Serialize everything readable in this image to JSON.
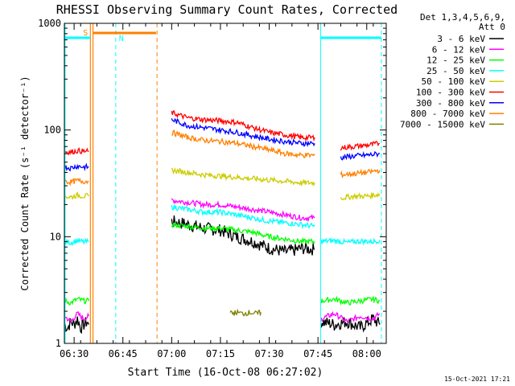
{
  "chart_data": {
    "type": "line",
    "title": "RHESSI Observing Summary Count Rates, Corrected",
    "xlabel": "Start Time (16-Oct-08 06:27:02)",
    "ylabel": "Corrected Count Rate (s⁻¹ detector⁻¹)",
    "ylim": [
      1,
      1000
    ],
    "yscale": "log",
    "xlim_minutes": [
      0,
      99
    ],
    "x_ticks": [
      {
        "label": "06:30",
        "minute": 3
      },
      {
        "label": "06:45",
        "minute": 18
      },
      {
        "label": "07:00",
        "minute": 33
      },
      {
        "label": "07:15",
        "minute": 48
      },
      {
        "label": "07:30",
        "minute": 63
      },
      {
        "label": "07:45",
        "minute": 78
      },
      {
        "label": "08:00",
        "minute": 93
      }
    ],
    "y_ticks": [
      {
        "label": "1",
        "value": 1
      },
      {
        "label": "10",
        "value": 10
      },
      {
        "label": "100",
        "value": 100
      },
      {
        "label": "1000",
        "value": 1000
      }
    ],
    "legend_header": [
      "Det 1,3,4,5,6,9,",
      "Att 0"
    ],
    "legend_position": "right",
    "date_stamp": "15-Oct-2021 17:21",
    "annotations": [
      {
        "label": "S",
        "color": "#ff8000"
      },
      {
        "label": "N",
        "color": "#00ffff"
      }
    ],
    "series": [
      {
        "name": "3 - 6 keV",
        "color": "#000000",
        "segments": [
          {
            "x": [
              0,
              1,
              2,
              3,
              4,
              5,
              6,
              7,
              7.5
            ],
            "y": [
              1.5,
              1.4,
              1.6,
              1.5,
              1.7,
              1.4,
              1.5,
              1.6,
              1.5
            ]
          },
          {
            "x": [
              33,
              38,
              43,
              48,
              53,
              58,
              63,
              68,
              71,
              73,
              77
            ],
            "y": [
              14,
              13,
              12,
              11.5,
              10,
              9,
              7.8,
              7.2,
              7.5,
              7.8,
              7.6
            ]
          },
          {
            "x": [
              79,
              83,
              87,
              91,
              95,
              97
            ],
            "y": [
              1.6,
              1.5,
              1.6,
              1.4,
              1.7,
              1.5
            ]
          }
        ]
      },
      {
        "name": "6 - 12 keV",
        "color": "#ff00ff",
        "segments": [
          {
            "x": [
              0,
              2,
              4,
              6,
              7.5
            ],
            "y": [
              1.8,
              1.6,
              1.9,
              1.7,
              1.8
            ]
          },
          {
            "x": [
              33,
              38,
              43,
              48,
              53,
              58,
              63,
              68,
              73,
              77
            ],
            "y": [
              22,
              21,
              20,
              20,
              19,
              18,
              17,
              16,
              15,
              15
            ]
          },
          {
            "x": [
              79,
              83,
              87,
              91,
              95,
              97
            ],
            "y": [
              1.7,
              1.9,
              1.6,
              1.8,
              1.7,
              1.9
            ]
          }
        ]
      },
      {
        "name": "12 - 25 keV",
        "color": "#00ff00",
        "segments": [
          {
            "x": [
              0,
              2,
              4,
              6,
              7.5
            ],
            "y": [
              2.5,
              2.4,
              2.6,
              2.5,
              2.5
            ]
          },
          {
            "x": [
              33,
              38,
              43,
              48,
              53,
              58,
              63,
              68,
              73,
              77
            ],
            "y": [
              13,
              12.5,
              12,
              12,
              11.5,
              11,
              10,
              9.5,
              9,
              9
            ]
          },
          {
            "x": [
              79,
              83,
              87,
              91,
              95,
              97
            ],
            "y": [
              2.5,
              2.6,
              2.4,
              2.5,
              2.6,
              2.5
            ]
          }
        ]
      },
      {
        "name": "25 - 50 keV",
        "color": "#00ffff",
        "segments": [
          {
            "x": [
              0,
              2,
              4,
              6,
              7.5
            ],
            "y": [
              9,
              8.8,
              9.2,
              8.9,
              9
            ]
          },
          {
            "x": [
              33,
              38,
              43,
              48,
              53,
              58,
              63,
              68,
              73,
              77
            ],
            "y": [
              19,
              18,
              17,
              17,
              16,
              15,
              14,
              13.5,
              13,
              12.5
            ]
          },
          {
            "x": [
              79,
              83,
              87,
              91,
              95,
              97
            ],
            "y": [
              9,
              9.2,
              8.8,
              9.1,
              9,
              9.3
            ]
          }
        ]
      },
      {
        "name": "50 - 100 keV",
        "color": "#cccc00",
        "segments": [
          {
            "x": [
              0,
              2,
              4,
              6,
              7.5
            ],
            "y": [
              24,
              23.5,
              24.5,
              24,
              24
            ]
          },
          {
            "x": [
              33,
              38,
              43,
              48,
              53,
              58,
              63,
              68,
              73,
              77
            ],
            "y": [
              42,
              40,
              38,
              37,
              36,
              35,
              34,
              33,
              32,
              32
            ]
          },
          {
            "x": [
              85,
              89,
              93,
              97
            ],
            "y": [
              23,
              24,
              24,
              25
            ]
          }
        ]
      },
      {
        "name": "100 - 300 keV",
        "color": "#ff0000",
        "segments": [
          {
            "x": [
              0,
              2,
              4,
              6,
              7.5
            ],
            "y": [
              63,
              62,
              64,
              63,
              63
            ]
          },
          {
            "x": [
              33,
              38,
              43,
              48,
              53,
              58,
              63,
              68,
              73,
              77
            ],
            "y": [
              145,
              130,
              125,
              122,
              118,
              105,
              95,
              90,
              85,
              85
            ]
          },
          {
            "x": [
              85,
              89,
              93,
              97
            ],
            "y": [
              68,
              70,
              72,
              75
            ]
          }
        ]
      },
      {
        "name": "300 - 800 keV",
        "color": "#0000ff",
        "segments": [
          {
            "x": [
              0,
              2,
              4,
              6,
              7.5
            ],
            "y": [
              45,
              44,
              46,
              45,
              45
            ]
          },
          {
            "x": [
              33,
              38,
              43,
              48,
              53,
              58,
              63,
              68,
              73,
              77
            ],
            "y": [
              125,
              110,
              105,
              100,
              95,
              88,
              82,
              78,
              75,
              75
            ]
          },
          {
            "x": [
              85,
              89,
              93,
              97
            ],
            "y": [
              55,
              57,
              58,
              60
            ]
          }
        ]
      },
      {
        "name": "800 - 7000 keV",
        "color": "#ff8000",
        "segments": [
          {
            "x": [
              0,
              2,
              4,
              6,
              7.5
            ],
            "y": [
              33,
              32.5,
              33.5,
              33,
              33
            ]
          },
          {
            "x": [
              33,
              38,
              43,
              48,
              53,
              58,
              63,
              68,
              73,
              77
            ],
            "y": [
              95,
              85,
              80,
              78,
              75,
              70,
              65,
              60,
              58,
              58
            ]
          },
          {
            "x": [
              85,
              89,
              93,
              97
            ],
            "y": [
              38,
              39,
              40,
              42
            ]
          }
        ]
      },
      {
        "name": "7000 - 15000 keV",
        "color": "#808000",
        "segments": [
          {
            "x": [
              51,
              53,
              55,
              57,
              59,
              60.5
            ],
            "y": [
              1.9,
              1.95,
              1.9,
              1.95,
              1.9,
              1.95
            ]
          }
        ]
      }
    ]
  }
}
